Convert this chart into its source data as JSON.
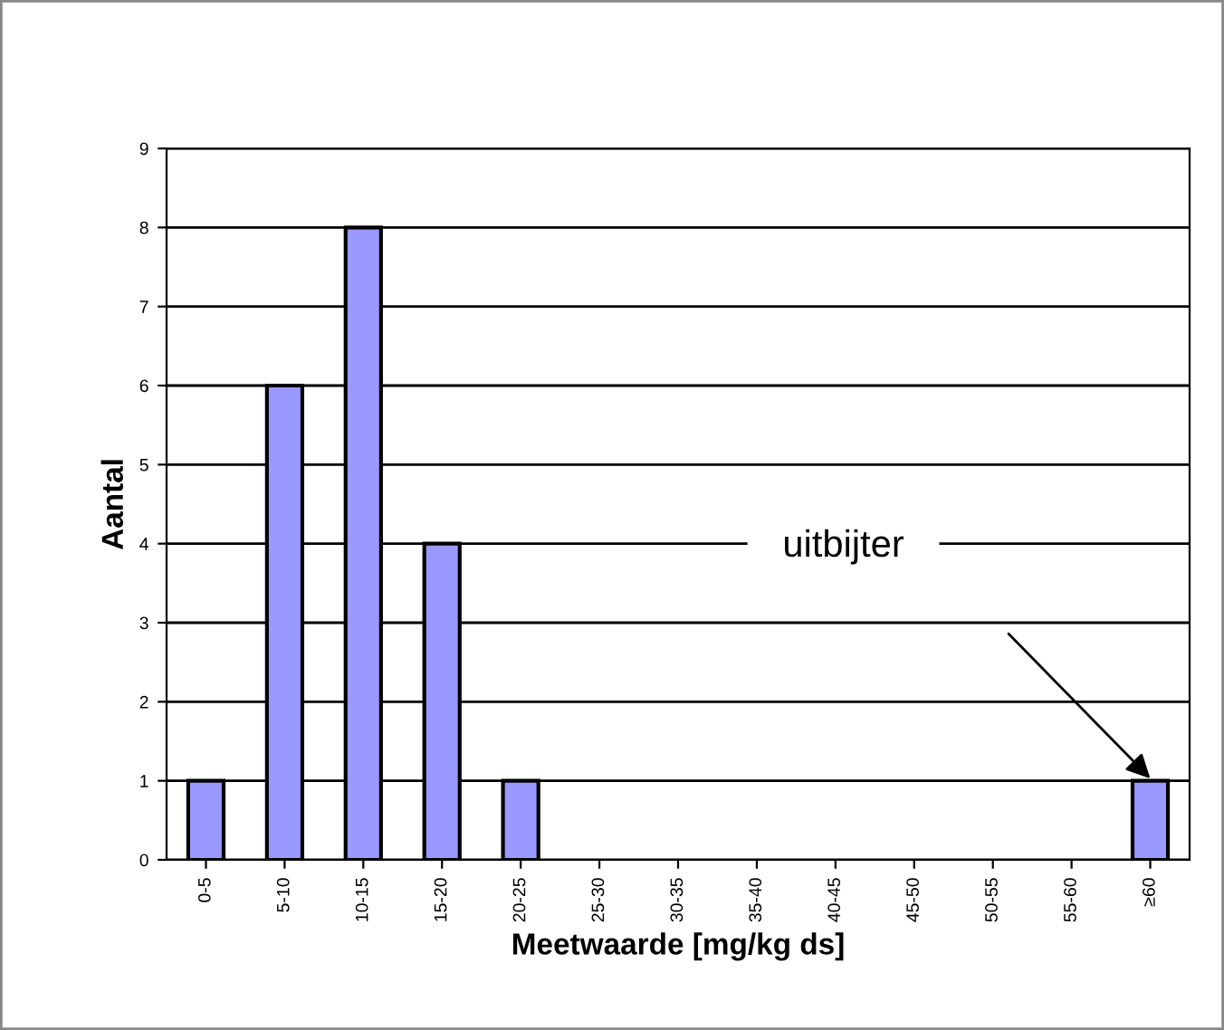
{
  "chart_data": {
    "type": "bar",
    "xlabel": "Meetwaarde [mg/kg ds]",
    "ylabel": "Aantal",
    "categories": [
      "0-5",
      "5-10",
      "10-15",
      "15-20",
      "20-25",
      "25-30",
      "30-35",
      "35-40",
      "40-45",
      "45-50",
      "50-55",
      "55-60",
      "≥60"
    ],
    "values": [
      1,
      6,
      8,
      4,
      1,
      0,
      0,
      0,
      0,
      0,
      0,
      0,
      1
    ],
    "color": "#9999ff",
    "ylim": [
      0,
      9
    ],
    "yticks": [
      0,
      1,
      2,
      3,
      4,
      5,
      6,
      7,
      8,
      9
    ],
    "grid": "y",
    "annotations": [
      "uitbijter"
    ]
  }
}
